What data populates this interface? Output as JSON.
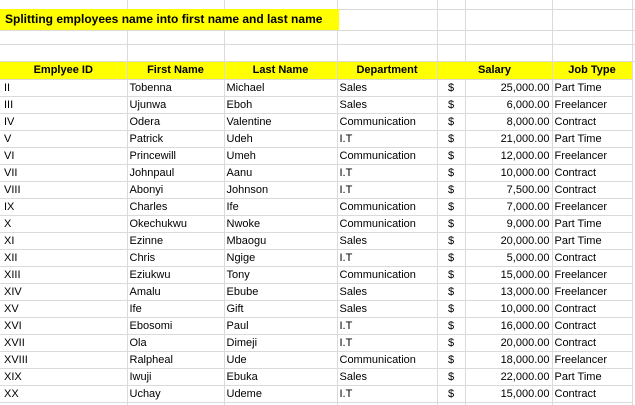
{
  "title": "Splitting employees name into first name and last name",
  "headers": {
    "id": "Emplyee ID",
    "first": "First Name",
    "last": "Last Name",
    "dept": "Department",
    "salary": "Salary",
    "job": "Job Type"
  },
  "currency_symbol": "$",
  "highlight_color": "#ffff00",
  "rows": [
    {
      "id": "II",
      "first": "Tobenna",
      "last": "Michael",
      "dept": "Sales",
      "cur": "$",
      "salary": "25,000.00",
      "job": "Part Time"
    },
    {
      "id": "III",
      "first": "Ujunwa",
      "last": "Eboh",
      "dept": "Sales",
      "cur": "$",
      "salary": "6,000.00",
      "job": "Freelancer"
    },
    {
      "id": "IV",
      "first": "Odera",
      "last": "Valentine",
      "dept": "Communication",
      "cur": "$",
      "salary": "8,000.00",
      "job": "Contract"
    },
    {
      "id": "V",
      "first": "Patrick",
      "last": "Udeh",
      "dept": "I.T",
      "cur": "$",
      "salary": "21,000.00",
      "job": "Part Time"
    },
    {
      "id": "VI",
      "first": "Princewill",
      "last": "Umeh",
      "dept": "Communication",
      "cur": "$",
      "salary": "12,000.00",
      "job": "Freelancer"
    },
    {
      "id": "VII",
      "first": "Johnpaul",
      "last": "Aanu",
      "dept": "I.T",
      "cur": "$",
      "salary": "10,000.00",
      "job": "Contract"
    },
    {
      "id": "VIII",
      "first": "Abonyi",
      "last": "Johnson",
      "dept": "I.T",
      "cur": "$",
      "salary": "7,500.00",
      "job": "Contract"
    },
    {
      "id": "IX",
      "first": "Charles",
      "last": "Ife",
      "dept": "Communication",
      "cur": "$",
      "salary": "7,000.00",
      "job": "Freelancer"
    },
    {
      "id": "X",
      "first": "Okechukwu",
      "last": "Nwoke",
      "dept": "Communication",
      "cur": "$",
      "salary": "9,000.00",
      "job": "Part Time"
    },
    {
      "id": "XI",
      "first": "Ezinne",
      "last": "Mbaogu",
      "dept": "Sales",
      "cur": "$",
      "salary": "20,000.00",
      "job": "Part Time"
    },
    {
      "id": "XII",
      "first": "Chris",
      "last": "Ngige",
      "dept": "I.T",
      "cur": "$",
      "salary": "5,000.00",
      "job": "Contract"
    },
    {
      "id": "XIII",
      "first": "Eziukwu",
      "last": "Tony",
      "dept": "Communication",
      "cur": "$",
      "salary": "15,000.00",
      "job": "Freelancer"
    },
    {
      "id": "XIV",
      "first": "Amalu",
      "last": "Ebube",
      "dept": "Sales",
      "cur": "$",
      "salary": "13,000.00",
      "job": "Freelancer"
    },
    {
      "id": "XV",
      "first": "Ife",
      "last": "Gift",
      "dept": "Sales",
      "cur": "$",
      "salary": "10,000.00",
      "job": "Contract"
    },
    {
      "id": "XVI",
      "first": "Ebosomi",
      "last": "Paul",
      "dept": "I.T",
      "cur": "$",
      "salary": "16,000.00",
      "job": "Contract"
    },
    {
      "id": "XVII",
      "first": "Ola",
      "last": "Dimeji",
      "dept": "I.T",
      "cur": "$",
      "salary": "20,000.00",
      "job": "Contract"
    },
    {
      "id": "XVIII",
      "first": "Ralpheal",
      "last": "Ude",
      "dept": "Communication",
      "cur": "$",
      "salary": "18,000.00",
      "job": "Freelancer"
    },
    {
      "id": "XIX",
      "first": "Iwuji",
      "last": "Ebuka",
      "dept": "Sales",
      "cur": "$",
      "salary": "22,000.00",
      "job": "Part Time"
    },
    {
      "id": "XX",
      "first": "Uchay",
      "last": "Udeme",
      "dept": "I.T",
      "cur": "$",
      "salary": "15,000.00",
      "job": "Contract"
    }
  ]
}
